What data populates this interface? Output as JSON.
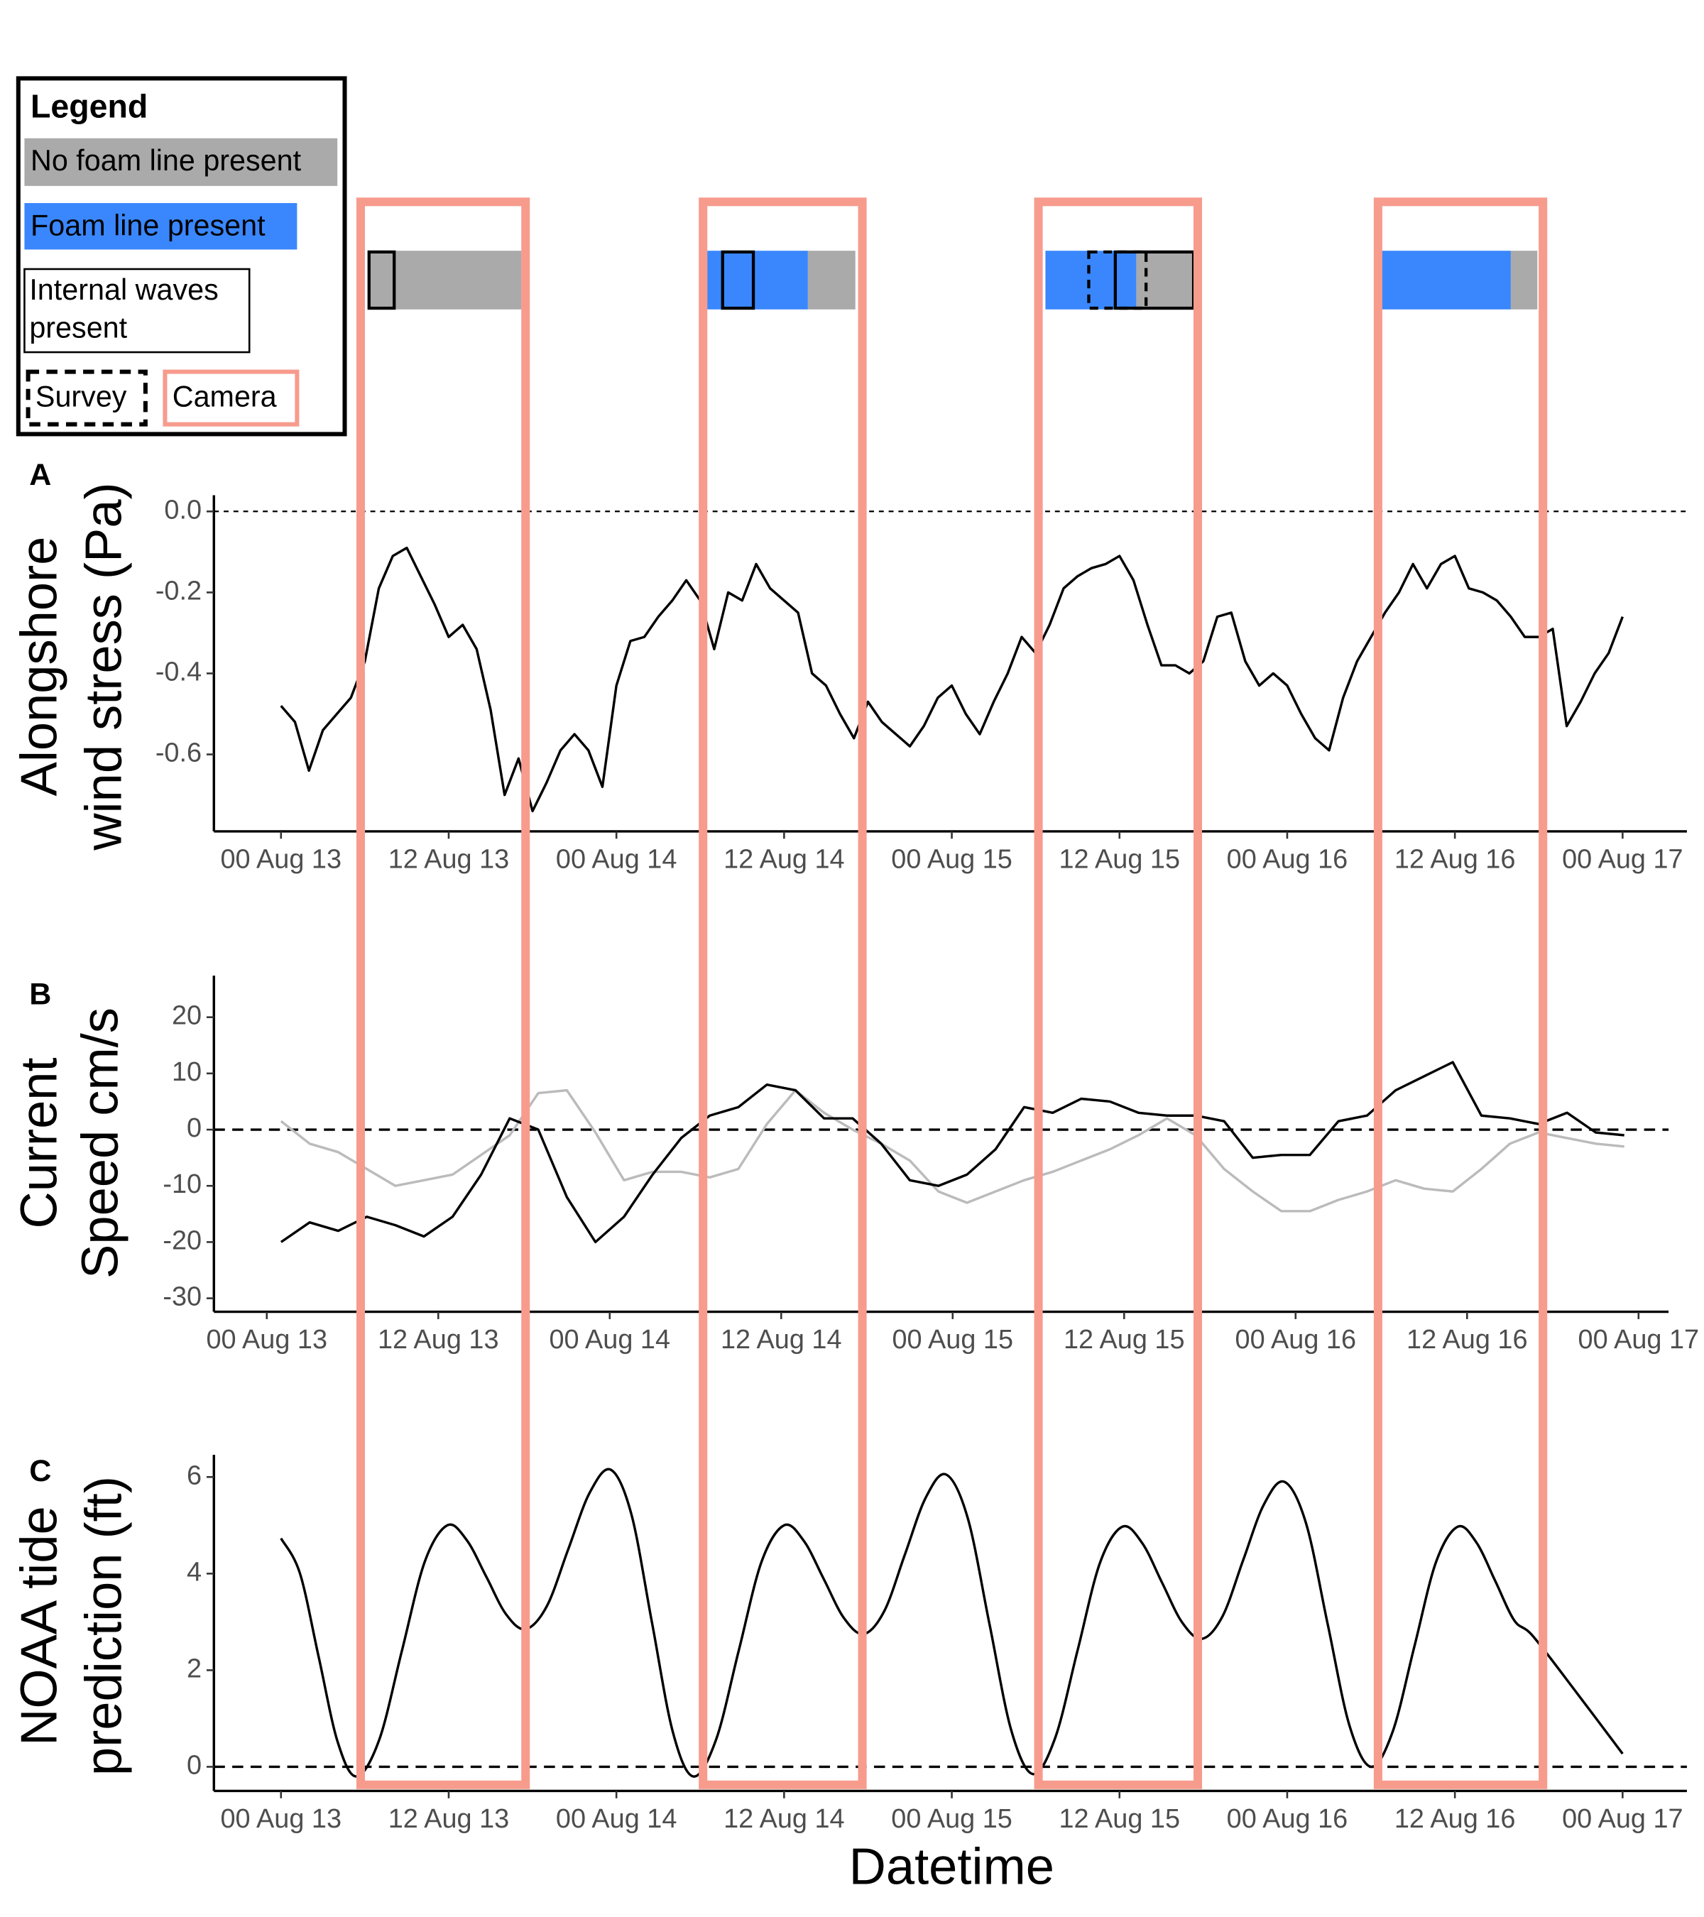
{
  "chart_data": [
    {
      "type": "timeline",
      "legend_title": "Legend",
      "xlim": [
        -4.8,
        100.6
      ],
      "series": [
        {
          "name": "No foam line present",
          "color": "#aaaaaa",
          "style": "fill",
          "intervals": [
            [
              6.3,
              17.2
            ],
            [
              37.7,
              41.1
            ],
            [
              61.2,
              65.3
            ],
            [
              88.0,
              89.9
            ]
          ]
        },
        {
          "name": "Foam line present",
          "color": "#3a87fd",
          "style": "fill",
          "intervals": [
            [
              30.5,
              37.7
            ],
            [
              54.7,
              61.2
            ],
            [
              78.7,
              88.0
            ]
          ]
        },
        {
          "name": "Internal waves present",
          "color": "#000000",
          "style": "solid",
          "intervals": [
            [
              6.3,
              8.1
            ],
            [
              31.6,
              33.8
            ],
            [
              59.7,
              65.3
            ]
          ]
        },
        {
          "name": "Survey",
          "color": "#000000",
          "style": "dashed",
          "intervals": [
            [
              57.8,
              61.9
            ]
          ]
        },
        {
          "name": "Camera",
          "color": "#f79b8d",
          "style": "camera",
          "intervals": [
            [
              5.7,
              17.5
            ],
            [
              30.2,
              41.6
            ],
            [
              54.2,
              65.6
            ],
            [
              78.5,
              90.3
            ]
          ]
        }
      ]
    },
    {
      "type": "line",
      "panel_label": "A",
      "ylabel": [
        "Alongshore",
        "wind stress (Pa)"
      ],
      "xlim": [
        -4.8,
        100.6
      ],
      "ylim": [
        -0.79,
        0.04
      ],
      "xticks": [
        {
          "value": 0,
          "label": "00 Aug 13"
        },
        {
          "value": 12,
          "label": "12 Aug 13"
        },
        {
          "value": 24,
          "label": "00 Aug 14"
        },
        {
          "value": 36,
          "label": "12 Aug 14"
        },
        {
          "value": 48,
          "label": "00 Aug 15"
        },
        {
          "value": 60,
          "label": "12 Aug 15"
        },
        {
          "value": 72,
          "label": "00 Aug 16"
        },
        {
          "value": 84,
          "label": "12 Aug 16"
        },
        {
          "value": 96,
          "label": "00 Aug 17"
        }
      ],
      "yticks": [
        {
          "value": 0,
          "label": "0.0"
        },
        -0.2,
        -0.4,
        -0.6
      ],
      "reference_line": 0,
      "x": [
        0,
        1,
        2,
        3,
        4,
        5,
        6,
        7,
        8,
        9,
        10,
        11,
        12,
        13,
        14,
        15,
        16,
        17,
        18,
        19,
        20,
        21,
        22,
        23,
        24,
        25,
        26,
        27,
        28,
        29,
        30,
        31,
        32,
        33,
        34,
        35,
        36,
        37,
        38,
        39,
        40,
        41,
        42,
        43,
        44,
        45,
        46,
        47,
        48,
        49,
        50,
        51,
        52,
        53,
        54,
        55,
        56,
        57,
        58,
        59,
        60,
        61,
        62,
        63,
        64,
        65,
        66,
        67,
        68,
        69,
        70,
        71,
        72,
        73,
        74,
        75,
        76,
        77,
        78,
        79,
        80,
        81,
        82,
        83,
        84,
        85,
        86,
        87,
        88,
        89,
        90,
        91,
        92,
        93,
        94,
        95,
        96
      ],
      "series": [
        {
          "color": "#000000",
          "values": [
            -0.48,
            -0.52,
            -0.64,
            -0.54,
            -0.5,
            -0.46,
            -0.37,
            -0.19,
            -0.11,
            -0.09,
            -0.16,
            -0.23,
            -0.31,
            -0.28,
            -0.34,
            -0.49,
            -0.7,
            -0.61,
            -0.74,
            -0.67,
            -0.59,
            -0.55,
            -0.59,
            -0.68,
            -0.43,
            -0.32,
            -0.31,
            -0.26,
            -0.22,
            -0.17,
            -0.22,
            -0.34,
            -0.2,
            -0.22,
            -0.13,
            -0.19,
            -0.22,
            -0.25,
            -0.4,
            -0.43,
            -0.5,
            -0.56,
            -0.47,
            -0.52,
            -0.55,
            -0.58,
            -0.53,
            -0.46,
            -0.43,
            -0.5,
            -0.55,
            -0.47,
            -0.4,
            -0.31,
            -0.35,
            -0.28,
            -0.19,
            -0.16,
            -0.14,
            -0.13,
            -0.11,
            -0.17,
            -0.28,
            -0.38,
            -0.38,
            -0.4,
            -0.37,
            -0.26,
            -0.25,
            -0.37,
            -0.43,
            -0.4,
            -0.43,
            -0.5,
            -0.56,
            -0.59,
            -0.46,
            -0.37,
            -0.31,
            -0.25,
            -0.2,
            -0.13,
            -0.19,
            -0.13,
            -0.11,
            -0.19,
            -0.2,
            -0.22,
            -0.26,
            -0.31,
            -0.31,
            -0.29,
            -0.53,
            -0.47,
            -0.4,
            -0.35,
            -0.26
          ]
        }
      ]
    },
    {
      "type": "line",
      "panel_label": "B",
      "ylabel": [
        "Current",
        "Speed cm/s"
      ],
      "xlim": [
        -3.7,
        98.1
      ],
      "ylim": [
        -32.4,
        27.4
      ],
      "xticks": [
        {
          "value": 0,
          "label": "00 Aug 13"
        },
        {
          "value": 12,
          "label": "12 Aug 13"
        },
        {
          "value": 24,
          "label": "00 Aug 14"
        },
        {
          "value": 36,
          "label": "12 Aug 14"
        },
        {
          "value": 48,
          "label": "00 Aug 15"
        },
        {
          "value": 60,
          "label": "12 Aug 15"
        },
        {
          "value": 72,
          "label": "00 Aug 16"
        },
        {
          "value": 84,
          "label": "12 Aug 16"
        },
        {
          "value": 96,
          "label": "00 Aug 17"
        }
      ],
      "yticks": [
        20,
        10,
        0,
        -10,
        -20,
        -30
      ],
      "reference_line": 0,
      "x": [
        1,
        3,
        5,
        7,
        9,
        11,
        13,
        15,
        17,
        19,
        21,
        23,
        25,
        27,
        29,
        31,
        33,
        35,
        37,
        39,
        41,
        43,
        45,
        47,
        49,
        51,
        53,
        55,
        57,
        59,
        61,
        63,
        65,
        67,
        69,
        71,
        73,
        75,
        77,
        79,
        81,
        83,
        85,
        87,
        89,
        91,
        93,
        95
      ],
      "series": [
        {
          "color": "#bbbbbb",
          "values": [
            1.5,
            -2.5,
            -4,
            -7,
            -10,
            -9,
            -8,
            -4.5,
            -1,
            6.5,
            7,
            -0.5,
            -9,
            -7.5,
            -7.5,
            -8.5,
            -7,
            1,
            7,
            3,
            0,
            -2.5,
            -5.5,
            -11,
            -13,
            -11,
            -9,
            -7.5,
            -5.5,
            -3.5,
            -1,
            2,
            -1,
            -7,
            -11,
            -14.5,
            -14.5,
            -12.5,
            -11,
            -9,
            -10.5,
            -11,
            -7,
            -2.5,
            -0.5,
            -1.5,
            -2.5,
            -3
          ]
        },
        {
          "color": "#000000",
          "values": [
            -20,
            -16.5,
            -18,
            -15.5,
            -17,
            -19,
            -15.5,
            -8,
            2,
            0,
            -12,
            -20,
            -15.5,
            -8,
            -1.5,
            2.5,
            4,
            8,
            7,
            2,
            2,
            -2.5,
            -9,
            -10,
            -8,
            -3.5,
            4,
            3,
            5.5,
            5,
            3,
            2.5,
            2.5,
            1.5,
            -5,
            -4.5,
            -4.5,
            1.5,
            2.5,
            7,
            9.5,
            12,
            2.5,
            2,
            1,
            3,
            -0.5,
            -1
          ]
        }
      ]
    },
    {
      "type": "line",
      "panel_label": "C",
      "ylabel": [
        "NOAA tide",
        "prediction (ft)"
      ],
      "xlabel": "Datetime",
      "smooth": true,
      "xlim": [
        -4.8,
        100.6
      ],
      "ylim": [
        -0.5,
        6.46
      ],
      "xticks": [
        {
          "value": 0,
          "label": "00 Aug 13"
        },
        {
          "value": 12,
          "label": "12 Aug 13"
        },
        {
          "value": 24,
          "label": "00 Aug 14"
        },
        {
          "value": 36,
          "label": "12 Aug 14"
        },
        {
          "value": 48,
          "label": "00 Aug 15"
        },
        {
          "value": 60,
          "label": "12 Aug 15"
        },
        {
          "value": 72,
          "label": "00 Aug 16"
        },
        {
          "value": 84,
          "label": "12 Aug 16"
        },
        {
          "value": 96,
          "label": "00 Aug 17"
        }
      ],
      "yticks": [
        6,
        4,
        2,
        0
      ],
      "reference_line": 0,
      "x": [
        0,
        1.35,
        2.7,
        4.05,
        5.4,
        7.03,
        8.65,
        10.28,
        11.9,
        13.3,
        14.7,
        16.1,
        17.5,
        19.03,
        20.55,
        22.08,
        23.6,
        25.08,
        26.55,
        28.03,
        29.5,
        31.13,
        32.75,
        34.38,
        36,
        37.43,
        38.85,
        40.28,
        41.7,
        43.18,
        44.65,
        46.13,
        47.6,
        49.15,
        50.7,
        52.25,
        53.8,
        55.4,
        57,
        58.6,
        60.2,
        61.63,
        63.05,
        64.48,
        65.9,
        67.38,
        68.85,
        70.33,
        71.8,
        73.35,
        74.9,
        76.45,
        78,
        79.55,
        81.1,
        82.65,
        84.2,
        85.55,
        86.9,
        88.25,
        89.6,
        92.8,
        96
      ],
      "series": [
        {
          "color": "#000000",
          "values": [
            4.73,
            4.01,
            2.27,
            0.52,
            -0.2,
            0.56,
            2.4,
            4.24,
            5,
            4.69,
            3.93,
            3.16,
            2.85,
            3.33,
            4.5,
            5.67,
            6.15,
            5.22,
            2.98,
            0.73,
            -0.2,
            0.56,
            2.4,
            4.24,
            5,
            4.67,
            3.88,
            3.08,
            2.75,
            3.23,
            4.4,
            5.57,
            6.05,
            5.14,
            2.95,
            0.76,
            -0.15,
            0.6,
            2.41,
            4.22,
            4.97,
            4.63,
            3.81,
            2.99,
            2.65,
            3.12,
            4.28,
            5.43,
            5.9,
            5.04,
            2.95,
            0.86,
            0,
            0.73,
            2.49,
            4.24,
            4.97,
            4.64,
            3.84,
            3.03,
            2.7,
            1.5,
            0.27
          ]
        }
      ]
    }
  ]
}
